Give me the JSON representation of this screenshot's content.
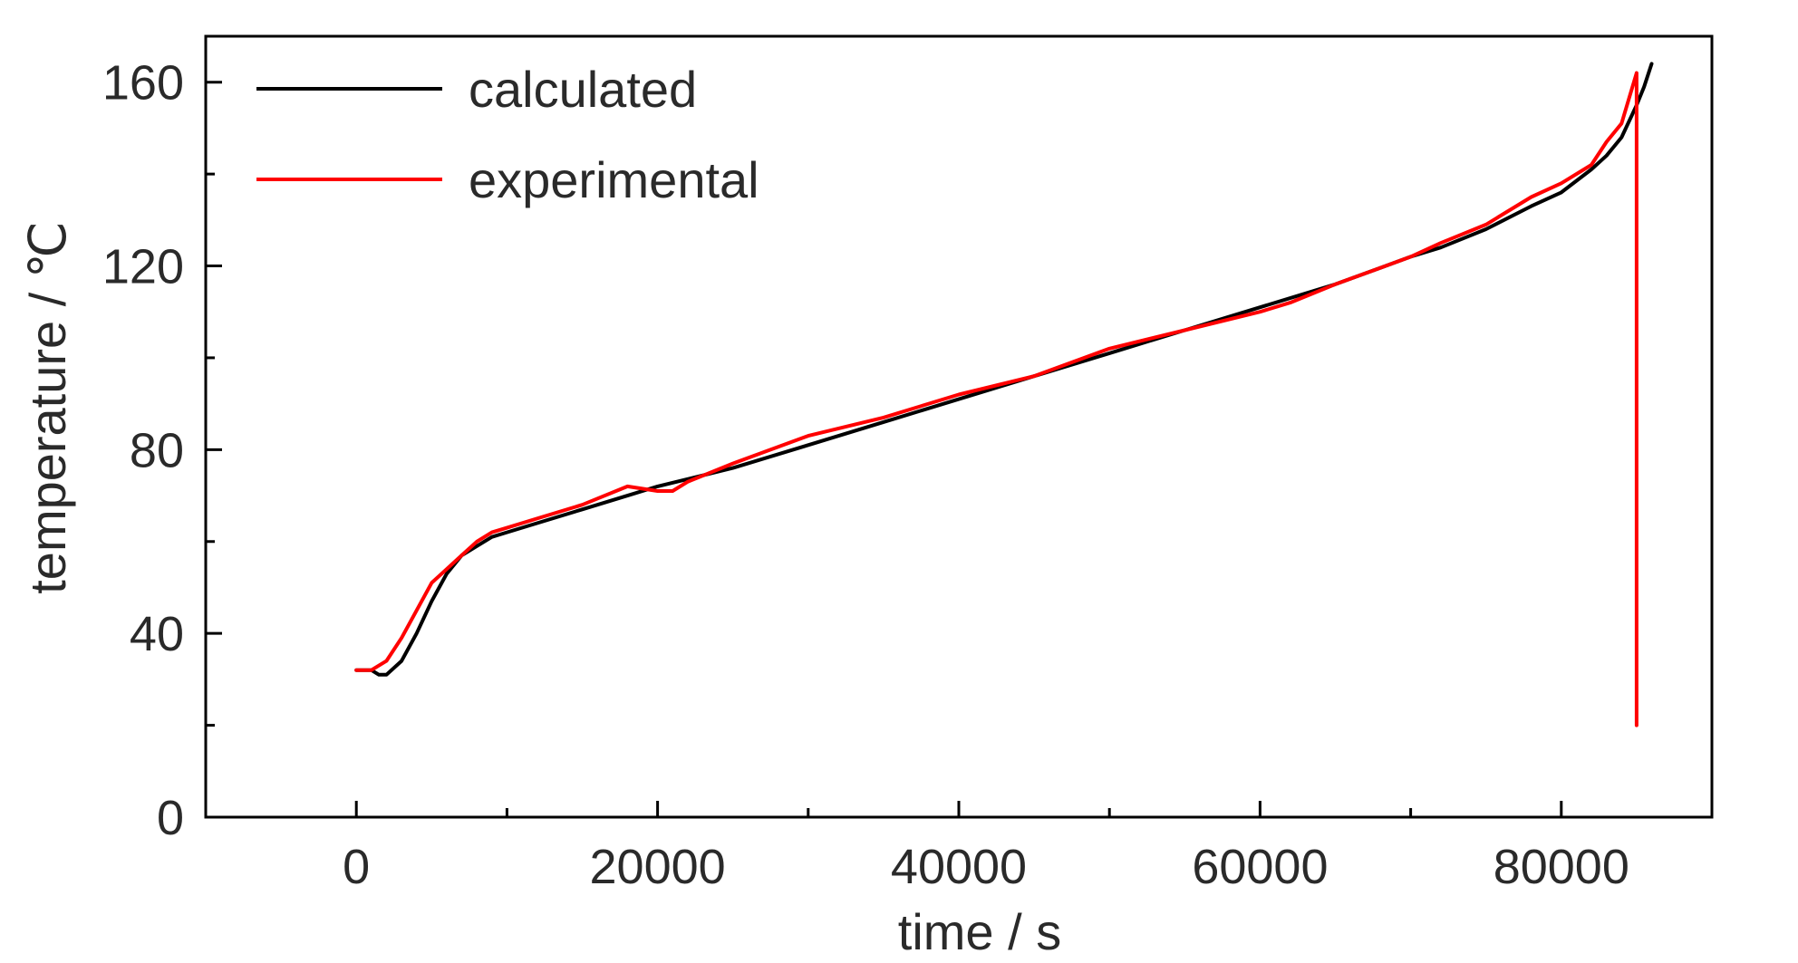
{
  "chart_data": {
    "type": "line",
    "title": "",
    "xlabel": "time / s",
    "ylabel": "temperature / ℃",
    "xlim": [
      -10000,
      90000
    ],
    "ylim": [
      0,
      170
    ],
    "x_ticks": [
      0,
      20000,
      40000,
      60000,
      80000
    ],
    "x_tick_labels": [
      "0",
      "20000",
      "40000",
      "60000",
      "80000"
    ],
    "y_ticks": [
      0,
      40,
      80,
      120,
      160
    ],
    "y_tick_labels": [
      "0",
      "40",
      "80",
      "120",
      "160"
    ],
    "grid": false,
    "legend_position": "top-left",
    "series": [
      {
        "name": "calculated",
        "color": "#000000",
        "x": [
          0,
          1000,
          1500,
          2000,
          3000,
          4000,
          5000,
          6000,
          7000,
          8000,
          9000,
          10000,
          12000,
          15000,
          18000,
          20000,
          25000,
          30000,
          35000,
          40000,
          45000,
          50000,
          55000,
          60000,
          65000,
          70000,
          72000,
          75000,
          78000,
          80000,
          82000,
          83000,
          84000,
          85000,
          85500,
          86000
        ],
        "y": [
          32,
          32,
          31,
          31,
          34,
          40,
          47,
          53,
          57,
          59,
          61,
          62,
          64,
          67,
          70,
          72,
          76,
          81,
          86,
          91,
          96,
          101,
          106,
          111,
          116,
          122,
          124,
          128,
          133,
          136,
          141,
          144,
          148,
          155,
          159,
          164
        ]
      },
      {
        "name": "experimental",
        "color": "#ff0000",
        "x": [
          0,
          1000,
          2000,
          3000,
          4000,
          5000,
          6000,
          7000,
          8000,
          9000,
          10000,
          12000,
          15000,
          18000,
          20000,
          21000,
          22000,
          25000,
          30000,
          35000,
          40000,
          45000,
          50000,
          55000,
          60000,
          62000,
          65000,
          70000,
          72000,
          75000,
          78000,
          80000,
          82000,
          83000,
          84000,
          85000,
          85000
        ],
        "y": [
          32,
          32,
          34,
          39,
          45,
          51,
          54,
          57,
          60,
          62,
          63,
          65,
          68,
          72,
          71,
          71,
          73,
          77,
          83,
          87,
          92,
          96,
          102,
          106,
          110,
          112,
          116,
          122,
          125,
          129,
          135,
          138,
          142,
          147,
          151,
          162,
          20
        ]
      }
    ]
  }
}
